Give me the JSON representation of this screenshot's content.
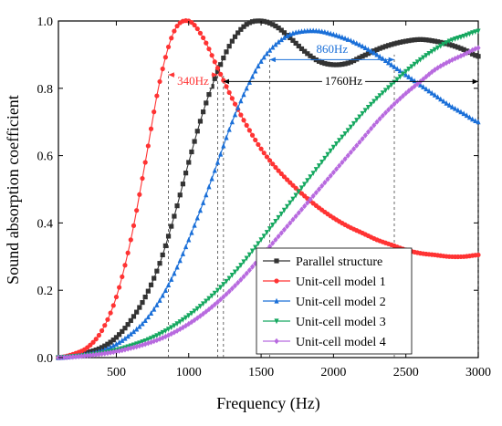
{
  "chart_data": {
    "type": "line",
    "title": "",
    "xlabel": "Frequency (Hz)",
    "ylabel": "Sound absorption coefficient",
    "xlim": [
      100,
      3000
    ],
    "ylim": [
      0,
      1.0
    ],
    "xticks": [
      500,
      1000,
      1500,
      2000,
      2500,
      3000
    ],
    "xtick_labels": [
      "500",
      "1000",
      "1500",
      "2000",
      "2500",
      "3000"
    ],
    "yticks": [
      0,
      0.2,
      0.4,
      0.6,
      0.8,
      1.0
    ],
    "ytick_labels": [
      "0.0",
      "0.2",
      "0.4",
      "0.6",
      "0.8",
      "1.0"
    ],
    "grid": false,
    "legend_position": "bottom-right",
    "series": [
      {
        "name": "Parallel structure",
        "color": "#333333",
        "marker": "square",
        "x": [
          100,
          200,
          300,
          400,
          500,
          600,
          700,
          800,
          900,
          1000,
          1100,
          1200,
          1300,
          1400,
          1500,
          1600,
          1700,
          1800,
          1900,
          2000,
          2100,
          2200,
          2300,
          2400,
          2500,
          2600,
          2700,
          2800,
          2900,
          3000
        ],
        "y": [
          0.0,
          0.005,
          0.015,
          0.03,
          0.06,
          0.11,
          0.18,
          0.28,
          0.42,
          0.58,
          0.73,
          0.85,
          0.94,
          0.99,
          1.0,
          0.985,
          0.95,
          0.91,
          0.88,
          0.87,
          0.875,
          0.895,
          0.915,
          0.93,
          0.94,
          0.945,
          0.94,
          0.93,
          0.915,
          0.895
        ]
      },
      {
        "name": "Unit-cell model 1",
        "color": "#ff3333",
        "marker": "circle",
        "x": [
          100,
          200,
          300,
          400,
          500,
          600,
          700,
          800,
          900,
          1000,
          1100,
          1200,
          1300,
          1400,
          1500,
          1600,
          1700,
          1800,
          1900,
          2000,
          2100,
          2200,
          2300,
          2400,
          2500,
          2600,
          2700,
          2800,
          2900,
          3000
        ],
        "y": [
          0.0,
          0.01,
          0.03,
          0.08,
          0.18,
          0.35,
          0.58,
          0.82,
          0.97,
          1.0,
          0.95,
          0.86,
          0.77,
          0.69,
          0.62,
          0.565,
          0.52,
          0.48,
          0.445,
          0.415,
          0.39,
          0.37,
          0.35,
          0.335,
          0.32,
          0.31,
          0.305,
          0.3,
          0.3,
          0.305
        ]
      },
      {
        "name": "Unit-cell model 2",
        "color": "#1a6fd8",
        "marker": "triangle-up",
        "x": [
          100,
          200,
          300,
          400,
          500,
          600,
          700,
          800,
          900,
          1000,
          1100,
          1200,
          1300,
          1400,
          1500,
          1600,
          1700,
          1800,
          1900,
          2000,
          2100,
          2200,
          2300,
          2400,
          2500,
          2600,
          2700,
          2800,
          2900,
          3000
        ],
        "y": [
          0.0,
          0.004,
          0.01,
          0.02,
          0.04,
          0.07,
          0.11,
          0.17,
          0.25,
          0.35,
          0.46,
          0.58,
          0.7,
          0.8,
          0.88,
          0.93,
          0.96,
          0.97,
          0.97,
          0.96,
          0.945,
          0.925,
          0.9,
          0.87,
          0.84,
          0.81,
          0.78,
          0.75,
          0.725,
          0.7
        ]
      },
      {
        "name": "Unit-cell model 3",
        "color": "#16a860",
        "marker": "triangle-down",
        "x": [
          100,
          200,
          300,
          400,
          500,
          600,
          700,
          800,
          900,
          1000,
          1100,
          1200,
          1300,
          1400,
          1500,
          1600,
          1700,
          1800,
          1900,
          2000,
          2100,
          2200,
          2300,
          2400,
          2500,
          2600,
          2700,
          2800,
          2900,
          3000
        ],
        "y": [
          0.0,
          0.003,
          0.007,
          0.013,
          0.022,
          0.035,
          0.05,
          0.07,
          0.095,
          0.125,
          0.16,
          0.2,
          0.245,
          0.295,
          0.35,
          0.405,
          0.46,
          0.515,
          0.57,
          0.625,
          0.675,
          0.725,
          0.77,
          0.81,
          0.85,
          0.885,
          0.915,
          0.94,
          0.955,
          0.97
        ]
      },
      {
        "name": "Unit-cell model 4",
        "color": "#b86adf",
        "marker": "diamond",
        "x": [
          100,
          200,
          300,
          400,
          500,
          600,
          700,
          800,
          900,
          1000,
          1100,
          1200,
          1300,
          1400,
          1500,
          1600,
          1700,
          1800,
          1900,
          2000,
          2100,
          2200,
          2300,
          2400,
          2500,
          2600,
          2700,
          2800,
          2900,
          3000
        ],
        "y": [
          0.0,
          0.002,
          0.006,
          0.011,
          0.018,
          0.028,
          0.04,
          0.055,
          0.075,
          0.1,
          0.13,
          0.165,
          0.205,
          0.25,
          0.3,
          0.35,
          0.4,
          0.45,
          0.5,
          0.55,
          0.6,
          0.65,
          0.7,
          0.745,
          0.785,
          0.82,
          0.855,
          0.88,
          0.9,
          0.92
        ]
      }
    ],
    "annotations": [
      {
        "text": "340Hz",
        "color": "#ff3333",
        "x_from": 860,
        "x_to": 1200,
        "y": 0.84,
        "label_x": 1030,
        "label_y": 0.81
      },
      {
        "text": "860Hz",
        "color": "#1a6fd8",
        "x_from": 1560,
        "x_to": 2420,
        "y": 0.885,
        "label_x": 1990,
        "label_y": 0.905
      },
      {
        "text": "1760Hz",
        "color": "#000000",
        "x_from": 1240,
        "x_to": 3000,
        "y": 0.82,
        "label_x": 2070,
        "label_y": 0.81
      }
    ],
    "guides": [
      {
        "x": 860,
        "y_to": 0.85
      },
      {
        "x": 1200,
        "y_to": 0.87
      },
      {
        "x": 1240,
        "y_to": 0.84
      },
      {
        "x": 1560,
        "y_to": 0.9
      },
      {
        "x": 2420,
        "y_to": 0.9
      },
      {
        "x": 3000,
        "y_to": 0.9
      }
    ]
  }
}
